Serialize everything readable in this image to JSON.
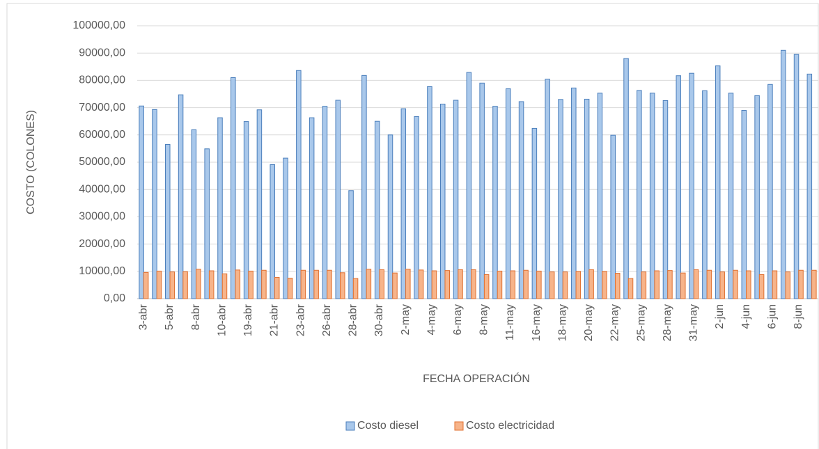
{
  "chart_data": {
    "type": "bar",
    "x_label": "FECHA OPERACIÓN",
    "y_label": "COSTO (COLONES)",
    "categories": [
      "3-abr",
      null,
      "5-abr",
      null,
      "8-abr",
      null,
      "10-abr",
      null,
      "19-abr",
      null,
      "21-abr",
      null,
      "23-abr",
      null,
      "26-abr",
      null,
      "28-abr",
      null,
      "30-abr",
      null,
      "2-may",
      null,
      "4-may",
      null,
      "6-may",
      null,
      "8-may",
      null,
      "11-may",
      null,
      "16-may",
      null,
      "18-may",
      null,
      "20-may",
      null,
      "22-may",
      null,
      "25-may",
      null,
      "28-may",
      null,
      "31-may",
      null,
      "2-jun",
      null,
      "4-jun",
      null,
      "6-jun",
      null,
      "8-jun",
      null
    ],
    "series": [
      {
        "name": "Costo diesel",
        "color": "#a9c8eb",
        "values": [
          70600,
          69300,
          56500,
          74700,
          61900,
          54900,
          66300,
          81000,
          64900,
          69200,
          49100,
          51500,
          83600,
          66300,
          70500,
          72700,
          39600,
          81800,
          65000,
          60000,
          69600,
          66700,
          77700,
          71300,
          72700,
          82900,
          79000,
          70500,
          76900,
          72200,
          62400,
          80400,
          73000,
          77200,
          73100,
          75300,
          59900,
          88000,
          76300,
          75300,
          72600,
          81700,
          82600,
          76200,
          85300,
          75300,
          69000,
          74400,
          78500,
          91000,
          89500,
          82300
        ]
      },
      {
        "name": "Costo electricidad",
        "color": "#f7b48a",
        "values": [
          9600,
          10100,
          9800,
          9900,
          10800,
          10200,
          9100,
          10500,
          10100,
          10400,
          7800,
          7500,
          10400,
          10400,
          10400,
          9500,
          7400,
          10800,
          10600,
          9400,
          10800,
          10500,
          10200,
          10300,
          10600,
          10600,
          8800,
          10100,
          10200,
          10400,
          10100,
          9800,
          9800,
          10000,
          10600,
          10000,
          9300,
          7400,
          9800,
          10200,
          10300,
          9400,
          10600,
          10400,
          9800,
          10400,
          10200,
          8800,
          10200,
          9800,
          10400,
          10400
        ]
      }
    ],
    "ylim": [
      0,
      100000
    ],
    "yticks": [
      {
        "value": 0,
        "label": "0,00"
      },
      {
        "value": 10000,
        "label": "10000,00"
      },
      {
        "value": 20000,
        "label": "20000,00"
      },
      {
        "value": 30000,
        "label": "30000,00"
      },
      {
        "value": 40000,
        "label": "40000,00"
      },
      {
        "value": 50000,
        "label": "50000,00"
      },
      {
        "value": 60000,
        "label": "60000,00"
      },
      {
        "value": 70000,
        "label": "70000,00"
      },
      {
        "value": 80000,
        "label": "80000,00"
      },
      {
        "value": 90000,
        "label": "90000,00"
      },
      {
        "value": 100000,
        "label": "100000,00"
      }
    ],
    "grid": true,
    "legend": "bottom"
  }
}
